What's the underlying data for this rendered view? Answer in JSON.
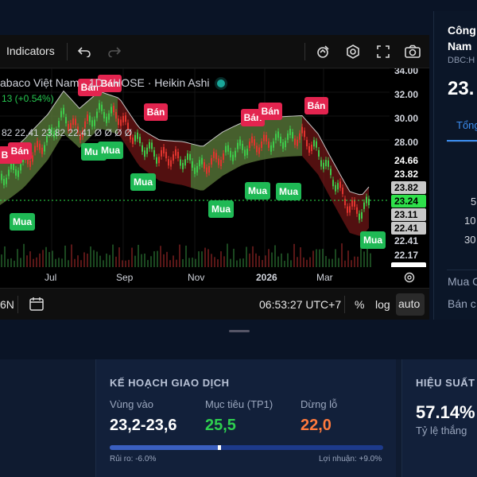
{
  "toolbar": {
    "indicators_label": "Indicators"
  },
  "legend": {
    "title": "abaco Việt Nam · 1D · HOSE · Heikin Ashi",
    "change": "13 (+0.54%)",
    "values": "82  22.41  23.82  22.41  Ø Ø Ø Ø"
  },
  "price_axis": {
    "ticks": [
      "34.00",
      "32.00",
      "30.00",
      "28.00",
      "22.41",
      "22.17"
    ],
    "tags": [
      {
        "text": "24.66",
        "color": "#ffffff",
        "bg": "#000000"
      },
      {
        "text": "23.82",
        "color": "#ffffff",
        "bg": "#000000"
      },
      {
        "text": "23.82",
        "color": "#000000",
        "bg": "#c8c8c8"
      },
      {
        "text": "23.24",
        "color": "#000000",
        "bg": "#2ee04a"
      },
      {
        "text": "23.11",
        "color": "#000000",
        "bg": "#c8c8c8"
      },
      {
        "text": "22.41",
        "color": "#000000",
        "bg": "#c8c8c8"
      }
    ]
  },
  "time_axis": {
    "labels": [
      "Jul",
      "Sep",
      "Nov",
      "2026",
      "Mar"
    ]
  },
  "bottom_bar": {
    "left_text": "6N",
    "clock": "06:53:27 UTC+7",
    "percent": "%",
    "log": "log",
    "auto": "auto"
  },
  "signals": {
    "sell_label": "Bán",
    "buy_label": "Mua"
  },
  "sidebar": {
    "company_line1": "Công",
    "company_line2": "Nam",
    "ticker": "DBC:H",
    "price": "23.",
    "tab": "Tổng",
    "row1": "5",
    "row2": "10",
    "row3": "30",
    "buy_row": "Mua C",
    "sell_row": "Bán c"
  },
  "trade_plan": {
    "title": "KẾ HOẠCH GIAO DỊCH",
    "entry_label": "Vùng vào",
    "entry_value": "23,2-23,6",
    "target_label": "Mục tiêu (TP1)",
    "target_value": "25,5",
    "stop_label": "Dừng lỗ",
    "stop_value": "22,0",
    "risk": "Rủi ro: -6.0%",
    "profit": "Lợi nhuận: +9.0%",
    "progress": 0.4,
    "colors": {
      "target": "#2ecf4f",
      "stop": "#ff7a3d"
    }
  },
  "performance": {
    "title": "HIỆU SUẤT C",
    "win_rate": "57.14%",
    "win_rate_label": "Tỷ lệ thắng"
  }
}
